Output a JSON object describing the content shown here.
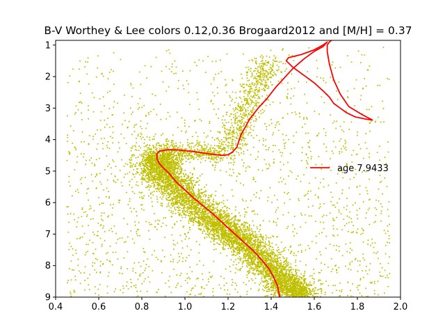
{
  "chart_data": {
    "type": "scatter",
    "title": "B-V Worthey & Lee colors 0.12,0.36 Brogaard2012 and [M/H] = 0.37",
    "xlabel": "",
    "ylabel": "",
    "xlim": [
      0.4,
      2.0
    ],
    "ylim": [
      9.0,
      0.85
    ],
    "y_inverted": true,
    "grid": false,
    "x_ticks": [
      "0.4",
      "0.6",
      "0.8",
      "1.0",
      "1.2",
      "1.4",
      "1.6",
      "1.8",
      "2.0"
    ],
    "y_ticks": [
      "1",
      "2",
      "3",
      "4",
      "5",
      "6",
      "7",
      "8",
      "9"
    ],
    "legend": {
      "placement": "center-right",
      "entries": [
        "age 7.9433"
      ]
    },
    "series": [
      {
        "name": "",
        "kind": "scatter",
        "color": "#bfbf00",
        "point_count_approx": 9000,
        "distribution": {
          "main_sequence_ridge": [
            [
              0.86,
              4.6
            ],
            [
              0.92,
              5.2
            ],
            [
              1.0,
              5.8
            ],
            [
              1.1,
              6.4
            ],
            [
              1.2,
              6.9
            ],
            [
              1.3,
              7.4
            ],
            [
              1.4,
              8.1
            ],
            [
              1.48,
              8.7
            ],
            [
              1.55,
              9.0
            ]
          ],
          "turnoff_clump": [
            0.88,
            4.8
          ],
          "subgiant_branch": [
            [
              0.9,
              4.4
            ],
            [
              1.05,
              4.4
            ],
            [
              1.18,
              4.45
            ]
          ],
          "red_giant_branch": [
            [
              1.2,
              4.4
            ],
            [
              1.25,
              3.6
            ],
            [
              1.3,
              2.8
            ],
            [
              1.35,
              2.0
            ],
            [
              1.4,
              1.5
            ]
          ],
          "field_scatter_x": [
            0.45,
            1.95
          ],
          "field_scatter_y": [
            1.0,
            9.0
          ]
        }
      },
      {
        "name": "age 7.9433",
        "kind": "line",
        "color": "#ff0000",
        "x": [
          1.44,
          1.43,
          1.41,
          1.39,
          1.36,
          1.32,
          1.28,
          1.24,
          1.2,
          1.16,
          1.12,
          1.08,
          1.04,
          1.0,
          0.96,
          0.93,
          0.9,
          0.88,
          0.87,
          0.87,
          0.88,
          0.92,
          0.97,
          1.04,
          1.11,
          1.17,
          1.2,
          1.22,
          1.24,
          1.25,
          1.26,
          1.28,
          1.3,
          1.34,
          1.38,
          1.42,
          1.46,
          1.5,
          1.55,
          1.6,
          1.64,
          1.66,
          1.64,
          1.6,
          1.54,
          1.48,
          1.47,
          1.5,
          1.55,
          1.6,
          1.64,
          1.67,
          1.69,
          1.72,
          1.75,
          1.79,
          1.84,
          1.87,
          1.82,
          1.76,
          1.72,
          1.69,
          1.67,
          1.66,
          1.66,
          1.67,
          1.68
        ],
        "y": [
          9.0,
          8.65,
          8.35,
          8.1,
          7.85,
          7.55,
          7.3,
          7.05,
          6.8,
          6.55,
          6.3,
          6.08,
          5.85,
          5.6,
          5.35,
          5.1,
          4.9,
          4.75,
          4.6,
          4.45,
          4.37,
          4.32,
          4.33,
          4.38,
          4.45,
          4.5,
          4.48,
          4.4,
          4.25,
          4.05,
          3.85,
          3.6,
          3.35,
          3.0,
          2.7,
          2.35,
          2.05,
          1.75,
          1.45,
          1.2,
          1.05,
          0.9,
          1.0,
          1.15,
          1.3,
          1.4,
          1.5,
          1.7,
          1.95,
          2.2,
          2.45,
          2.65,
          2.85,
          3.0,
          3.15,
          3.28,
          3.35,
          3.38,
          3.2,
          2.95,
          2.55,
          2.1,
          1.6,
          1.2,
          1.0,
          0.9,
          0.85
        ]
      }
    ]
  }
}
